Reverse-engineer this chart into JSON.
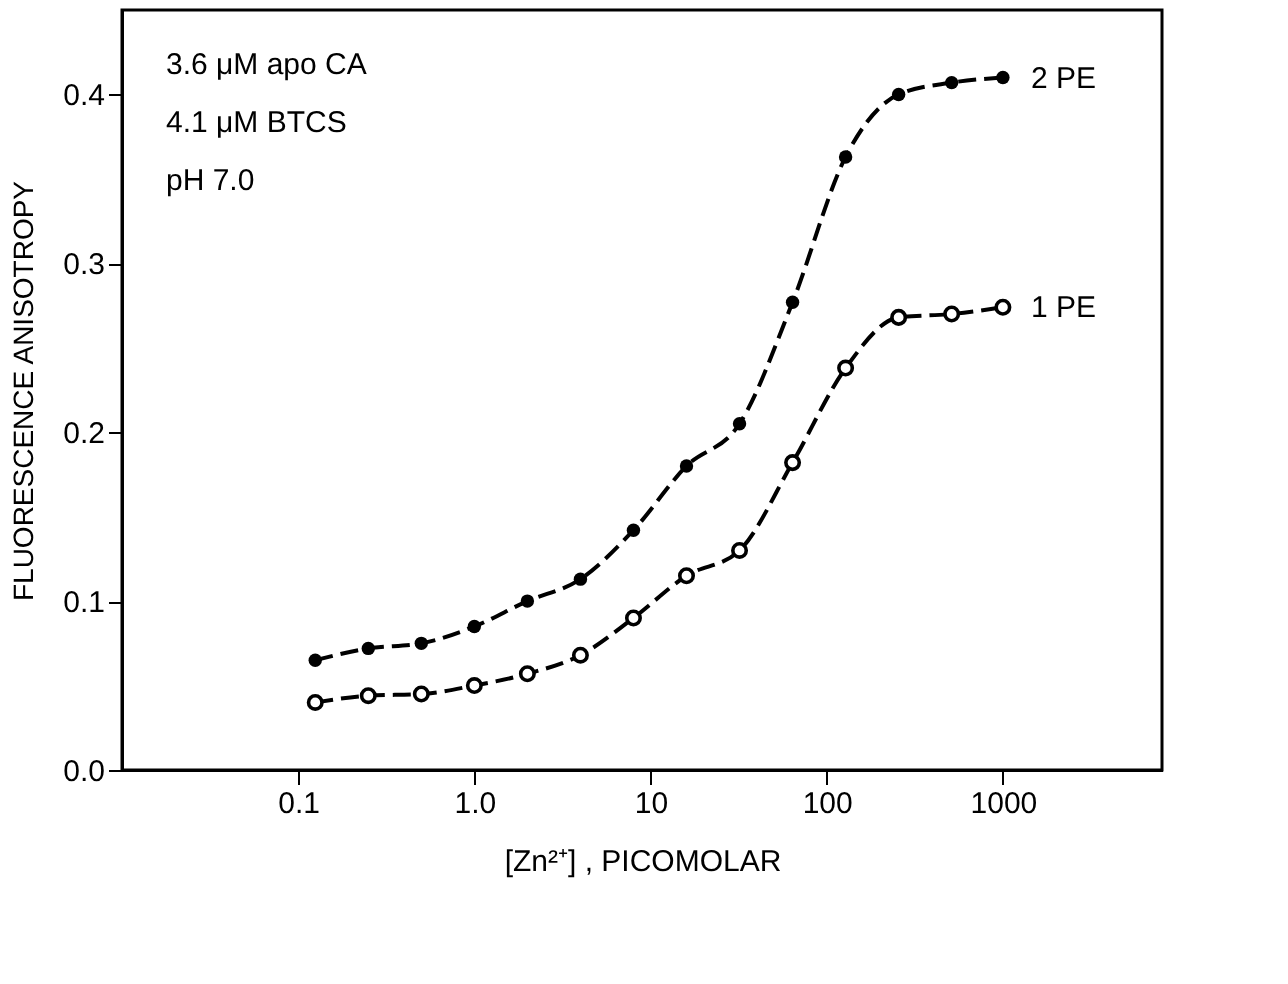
{
  "chart_data": {
    "type": "line",
    "xlabel": "[Zn²⁺] , PICOMOLAR",
    "ylabel": "FLUORESCENCE  ANISOTROPY",
    "x": [
      0.125,
      0.25,
      0.5,
      1,
      2,
      4,
      8,
      16,
      32,
      64,
      128,
      256,
      512,
      1000
    ],
    "series": [
      {
        "name": "2 PE",
        "color": "#000000",
        "values": [
          0.065,
          0.072,
          0.075,
          0.085,
          0.1,
          0.113,
          0.142,
          0.18,
          0.205,
          0.277,
          0.363,
          0.4,
          0.407,
          0.41
        ]
      },
      {
        "name": "1 PE",
        "color": "#000000",
        "values": [
          0.04,
          0.044,
          0.045,
          0.05,
          0.057,
          0.068,
          0.09,
          0.115,
          0.13,
          0.182,
          0.238,
          0.268,
          0.27,
          0.274
        ]
      }
    ],
    "log": "x",
    "xlim": [
      0.01,
      8000
    ],
    "xticks": [
      0.1,
      {
        "value": 1,
        "label": "1.0"
      },
      10,
      100,
      1000
    ],
    "ylim": [
      0,
      0.45
    ],
    "yticks": [
      {
        "value": 0,
        "label": "0.0"
      },
      0.1,
      0.2,
      0.3,
      0.4
    ],
    "marker": "circle",
    "line_style": "dashed",
    "grid": false,
    "annotations": [
      "3.6 μM  apo CA",
      "4.1 μM  BTCS",
      "pH  7.0"
    ]
  }
}
